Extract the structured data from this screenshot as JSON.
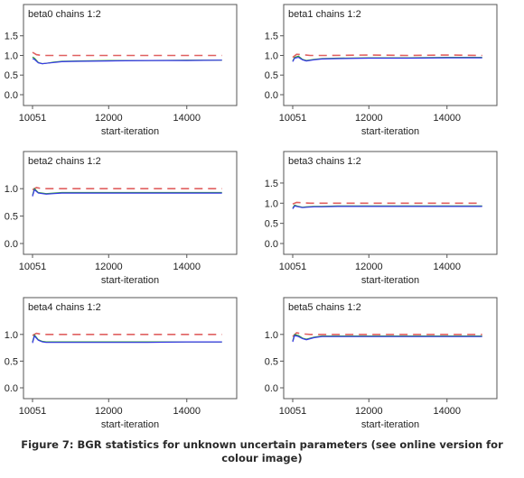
{
  "figure": {
    "caption_line1": "Figure 7: BGR statistics for unknown uncertain parameters (see online version for",
    "caption_line2": "colour image)"
  },
  "colors": {
    "bgr_ratio": "#e06060",
    "pooled_width": "#2e9a3c",
    "within_width": "#3a3ae8",
    "axis": "#555555"
  },
  "chart_data": [
    {
      "type": "line",
      "title": "beta0 chains 1:2",
      "xlabel": "start-iteration",
      "ylabel": "",
      "xlim": [
        10051,
        15000
      ],
      "ylim": [
        0,
        1.7
      ],
      "xticks": [
        10051,
        12000,
        14000
      ],
      "yticks": [
        "0.0",
        "0.5",
        "1.0",
        "1.5"
      ],
      "series": [
        {
          "role": "bgr",
          "style": "dashed",
          "x": [
            10051,
            10150,
            10300,
            10500,
            11000,
            12000,
            13000,
            14000,
            14900
          ],
          "y": [
            1.08,
            1.02,
            1.0,
            1.0,
            1.0,
            1.0,
            1.0,
            1.0,
            1.0
          ]
        },
        {
          "role": "pooled",
          "style": "solid",
          "x": [
            10051,
            10100,
            10200,
            10300,
            10400,
            10600,
            10800,
            11200,
            12000,
            13000,
            14000,
            14900
          ],
          "y": [
            0.96,
            0.93,
            0.82,
            0.79,
            0.8,
            0.83,
            0.85,
            0.86,
            0.87,
            0.87,
            0.88,
            0.88
          ]
        },
        {
          "role": "within",
          "style": "solid",
          "x": [
            10051,
            10100,
            10200,
            10300,
            10400,
            10600,
            10800,
            11200,
            12000,
            13000,
            14000,
            14900
          ],
          "y": [
            0.92,
            0.9,
            0.81,
            0.79,
            0.8,
            0.82,
            0.84,
            0.85,
            0.86,
            0.87,
            0.87,
            0.88
          ]
        }
      ]
    },
    {
      "type": "line",
      "title": "beta1 chains 1:2",
      "xlabel": "start-iteration",
      "ylabel": "",
      "xlim": [
        10051,
        15000
      ],
      "ylim": [
        0,
        1.7
      ],
      "xticks": [
        10051,
        12000,
        14000
      ],
      "yticks": [
        "0.0",
        "0.5",
        "1.0",
        "1.5"
      ],
      "series": [
        {
          "role": "bgr",
          "style": "dashed",
          "x": [
            10051,
            10150,
            10300,
            10500,
            11000,
            12000,
            13000,
            14000,
            14900
          ],
          "y": [
            0.95,
            1.03,
            1.02,
            1.0,
            1.0,
            1.01,
            1.0,
            1.01,
            1.0
          ]
        },
        {
          "role": "pooled",
          "style": "solid",
          "x": [
            10051,
            10100,
            10200,
            10300,
            10400,
            10600,
            10800,
            11200,
            12000,
            13000,
            14000,
            14900
          ],
          "y": [
            0.86,
            0.95,
            0.98,
            0.9,
            0.87,
            0.9,
            0.92,
            0.93,
            0.94,
            0.94,
            0.95,
            0.95
          ]
        },
        {
          "role": "within",
          "style": "solid",
          "x": [
            10051,
            10100,
            10200,
            10300,
            10400,
            10600,
            10800,
            11200,
            12000,
            13000,
            14000,
            14900
          ],
          "y": [
            0.84,
            0.93,
            0.95,
            0.89,
            0.86,
            0.89,
            0.91,
            0.92,
            0.93,
            0.93,
            0.94,
            0.94
          ]
        }
      ]
    },
    {
      "type": "line",
      "title": "beta2 chains 1:2",
      "xlabel": "start-iteration",
      "ylabel": "",
      "xlim": [
        10051,
        15000
      ],
      "ylim": [
        0,
        1.25
      ],
      "xticks": [
        10051,
        12000,
        14000
      ],
      "yticks": [
        "0.0",
        "0.5",
        "1.0"
      ],
      "series": [
        {
          "role": "bgr",
          "style": "dashed",
          "x": [
            10051,
            10150,
            10300,
            10500,
            11000,
            12000,
            13000,
            14000,
            14900
          ],
          "y": [
            0.98,
            1.02,
            1.0,
            1.0,
            1.0,
            1.0,
            1.0,
            1.0,
            1.0
          ]
        },
        {
          "role": "pooled",
          "style": "solid",
          "x": [
            10051,
            10100,
            10200,
            10300,
            10400,
            10600,
            10800,
            11200,
            12000,
            13000,
            14000,
            14900
          ],
          "y": [
            0.88,
            1.0,
            0.93,
            0.92,
            0.91,
            0.92,
            0.93,
            0.93,
            0.93,
            0.93,
            0.93,
            0.93
          ]
        },
        {
          "role": "within",
          "style": "solid",
          "x": [
            10051,
            10100,
            10200,
            10300,
            10400,
            10600,
            10800,
            11200,
            12000,
            13000,
            14000,
            14900
          ],
          "y": [
            0.86,
            0.98,
            0.92,
            0.91,
            0.9,
            0.91,
            0.92,
            0.92,
            0.92,
            0.92,
            0.92,
            0.92
          ]
        }
      ]
    },
    {
      "type": "line",
      "title": "beta3 chains 1:2",
      "xlabel": "start-iteration",
      "ylabel": "",
      "xlim": [
        10051,
        15000
      ],
      "ylim": [
        0,
        1.7
      ],
      "xticks": [
        10051,
        12000,
        14000
      ],
      "yticks": [
        "0.0",
        "0.5",
        "1.0",
        "1.5"
      ],
      "series": [
        {
          "role": "bgr",
          "style": "dashed",
          "x": [
            10051,
            10150,
            10300,
            10500,
            11000,
            12000,
            13000,
            14000,
            14900
          ],
          "y": [
            0.98,
            1.02,
            1.01,
            1.0,
            1.0,
            1.0,
            1.0,
            1.0,
            1.0
          ]
        },
        {
          "role": "pooled",
          "style": "solid",
          "x": [
            10051,
            10100,
            10200,
            10300,
            10400,
            10600,
            10800,
            11200,
            12000,
            13000,
            14000,
            14900
          ],
          "y": [
            0.88,
            0.95,
            0.92,
            0.9,
            0.91,
            0.92,
            0.92,
            0.93,
            0.93,
            0.93,
            0.93,
            0.93
          ]
        },
        {
          "role": "within",
          "style": "solid",
          "x": [
            10051,
            10100,
            10200,
            10300,
            10400,
            10600,
            10800,
            11200,
            12000,
            13000,
            14000,
            14900
          ],
          "y": [
            0.86,
            0.93,
            0.91,
            0.89,
            0.9,
            0.91,
            0.91,
            0.92,
            0.92,
            0.92,
            0.92,
            0.92
          ]
        }
      ]
    },
    {
      "type": "line",
      "title": "beta4 chains 1:2",
      "xlabel": "start-iteration",
      "ylabel": "",
      "xlim": [
        10051,
        15000
      ],
      "ylim": [
        0,
        1.25
      ],
      "xticks": [
        10051,
        12000,
        14000
      ],
      "yticks": [
        "0.0",
        "0.5",
        "1.0"
      ],
      "series": [
        {
          "role": "bgr",
          "style": "dashed",
          "x": [
            10051,
            10150,
            10300,
            10500,
            11000,
            12000,
            13000,
            14000,
            14900
          ],
          "y": [
            0.98,
            1.02,
            1.0,
            1.0,
            1.0,
            1.0,
            1.0,
            1.0,
            1.0
          ]
        },
        {
          "role": "pooled",
          "style": "solid",
          "x": [
            10051,
            10100,
            10200,
            10300,
            10400,
            10600,
            10800,
            11200,
            12000,
            13000,
            14000,
            14900
          ],
          "y": [
            0.86,
            0.99,
            0.9,
            0.87,
            0.86,
            0.86,
            0.86,
            0.86,
            0.86,
            0.86,
            0.86,
            0.86
          ]
        },
        {
          "role": "within",
          "style": "solid",
          "x": [
            10051,
            10100,
            10200,
            10300,
            10400,
            10600,
            10800,
            11200,
            12000,
            13000,
            14000,
            14900
          ],
          "y": [
            0.84,
            0.97,
            0.89,
            0.86,
            0.85,
            0.85,
            0.85,
            0.85,
            0.85,
            0.85,
            0.86,
            0.86
          ]
        }
      ]
    },
    {
      "type": "line",
      "title": "beta5 chains 1:2",
      "xlabel": "start-iteration",
      "ylabel": "",
      "xlim": [
        10051,
        15000
      ],
      "ylim": [
        0,
        1.25
      ],
      "xticks": [
        10051,
        12000,
        14000
      ],
      "yticks": [
        "0.0",
        "0.5",
        "1.0"
      ],
      "series": [
        {
          "role": "bgr",
          "style": "dashed",
          "x": [
            10051,
            10150,
            10300,
            10500,
            11000,
            12000,
            13000,
            14000,
            14900
          ],
          "y": [
            0.96,
            1.03,
            1.01,
            1.0,
            1.0,
            1.0,
            1.0,
            1.0,
            1.0
          ]
        },
        {
          "role": "pooled",
          "style": "solid",
          "x": [
            10051,
            10100,
            10200,
            10300,
            10400,
            10600,
            10800,
            11200,
            12000,
            13000,
            14000,
            14900
          ],
          "y": [
            0.88,
            1.0,
            0.98,
            0.93,
            0.91,
            0.95,
            0.97,
            0.97,
            0.97,
            0.97,
            0.97,
            0.97
          ]
        },
        {
          "role": "within",
          "style": "solid",
          "x": [
            10051,
            10100,
            10200,
            10300,
            10400,
            10600,
            10800,
            11200,
            12000,
            13000,
            14000,
            14900
          ],
          "y": [
            0.86,
            0.98,
            0.96,
            0.92,
            0.9,
            0.94,
            0.96,
            0.96,
            0.96,
            0.96,
            0.96,
            0.96
          ]
        }
      ]
    }
  ]
}
